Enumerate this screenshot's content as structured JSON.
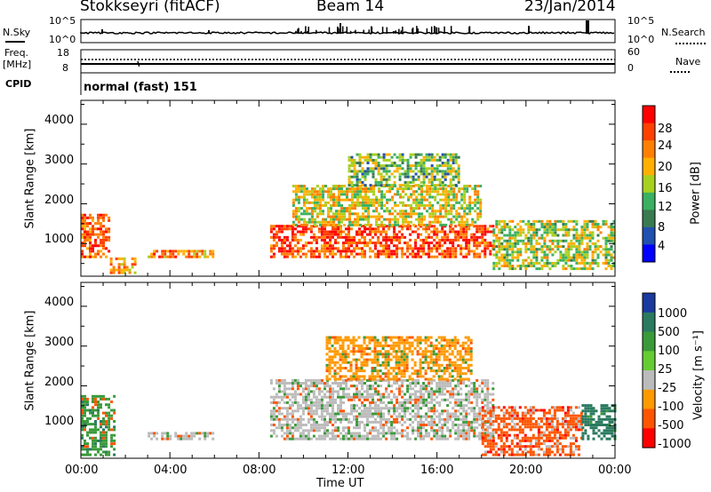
{
  "header": {
    "station": "Stokkseyri (fitACF)",
    "beam": "Beam 14",
    "date": "23/Jan/2014"
  },
  "noise_panel": {
    "left_label": "N.Sky",
    "right_label": "N.Search",
    "y_top_left": "10^5",
    "y_bottom_left": "10^0",
    "y_top_right": "10^5",
    "y_bottom_right": "10^0"
  },
  "freq_panel": {
    "left_label_1": "Freq.",
    "left_label_2": "[MHz]",
    "left_tick_top": "18",
    "left_tick_bottom": "8",
    "right_tick_top": "60",
    "right_tick_bottom": "0",
    "right_label": "Nave"
  },
  "cpid_panel": {
    "label": "CPID",
    "mode": "normal (fast) 151"
  },
  "power_colorbar": {
    "title": "Power [dB]",
    "ticks": [
      "28",
      "24",
      "20",
      "16",
      "12",
      "8",
      "4"
    ],
    "colors": [
      "#ff0000",
      "#ff4000",
      "#ff8000",
      "#ffb000",
      "#a8d020",
      "#3ab060",
      "#3a7a50",
      "#2050b0",
      "#0000ff"
    ]
  },
  "velocity_colorbar": {
    "title": "Velocity [m s⁻¹]",
    "ticks": [
      "1000",
      "500",
      "100",
      "25",
      "-25",
      "-100",
      "-500",
      "-1000"
    ],
    "colors": [
      "#1a3aa0",
      "#2a7a60",
      "#3a9a3a",
      "#66cc33",
      "#bbbbbb",
      "#ff9900",
      "#ff5500",
      "#ff0000"
    ]
  },
  "x_axis": {
    "ticks": [
      "00:00",
      "04:00",
      "08:00",
      "12:00",
      "16:00",
      "20:00",
      "00:00"
    ],
    "label": "Time UT"
  },
  "y_axis": {
    "label": "Slant Range [km]",
    "ticks": [
      "1000",
      "2000",
      "3000",
      "4000"
    ]
  },
  "chart_data": [
    {
      "type": "heatmap",
      "title": "Power",
      "xlabel": "Time UT",
      "ylabel": "Slant Range [km]",
      "xlim": [
        0,
        24
      ],
      "ylim": [
        180,
        4600
      ],
      "colorbar_label": "Power [dB]",
      "colorbar_ticks": [
        4,
        8,
        12,
        16,
        20,
        24,
        28
      ],
      "regions": [
        {
          "t0": 0.0,
          "t1": 1.3,
          "r0": 700,
          "r1": 1800,
          "power": 24
        },
        {
          "t0": 1.3,
          "t1": 2.5,
          "r0": 300,
          "r1": 700,
          "power": 20
        },
        {
          "t0": 3.0,
          "t1": 6.0,
          "r0": 700,
          "r1": 900,
          "power": 22
        },
        {
          "t0": 8.5,
          "t1": 18.5,
          "r0": 700,
          "r1": 1500,
          "power": 26
        },
        {
          "t0": 9.5,
          "t1": 18.0,
          "r0": 1500,
          "r1": 2500,
          "power": 16
        },
        {
          "t0": 12.0,
          "t1": 17.0,
          "r0": 2500,
          "r1": 3300,
          "power": 12
        },
        {
          "t0": 18.5,
          "t1": 24.0,
          "r0": 400,
          "r1": 1600,
          "power": 14
        }
      ]
    },
    {
      "type": "heatmap",
      "title": "Velocity",
      "xlabel": "Time UT",
      "ylabel": "Slant Range [km]",
      "xlim": [
        0,
        24
      ],
      "ylim": [
        180,
        4600
      ],
      "colorbar_label": "Velocity [m s⁻¹]",
      "colorbar_ticks": [
        -1000,
        -500,
        -100,
        -25,
        25,
        100,
        500,
        1000
      ],
      "regions": [
        {
          "t0": 0.0,
          "t1": 1.5,
          "r0": 300,
          "r1": 1800,
          "velocity": 200
        },
        {
          "t0": 3.0,
          "t1": 6.0,
          "r0": 700,
          "r1": 900,
          "velocity": 0
        },
        {
          "t0": 8.5,
          "t1": 18.5,
          "r0": 700,
          "r1": 2200,
          "velocity": 0
        },
        {
          "t0": 11.0,
          "t1": 17.5,
          "r0": 2200,
          "r1": 3300,
          "velocity": -50
        },
        {
          "t0": 18.0,
          "t1": 22.5,
          "r0": 300,
          "r1": 1500,
          "velocity": -300
        },
        {
          "t0": 22.5,
          "t1": 24.0,
          "r0": 700,
          "r1": 1600,
          "velocity": 500
        }
      ]
    }
  ]
}
